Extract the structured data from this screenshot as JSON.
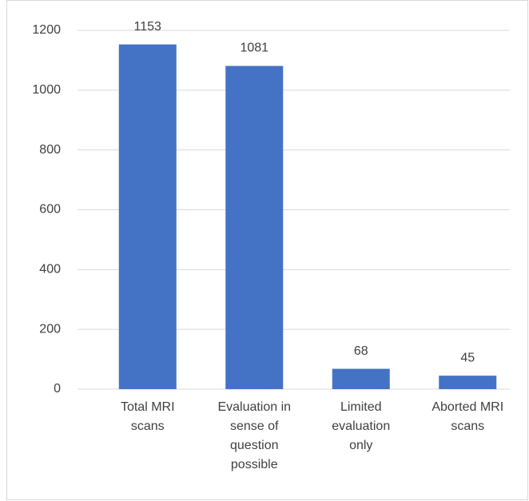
{
  "chart_data": {
    "type": "bar",
    "categories": [
      "Total MRI scans",
      "Evaluation in sense of question possible",
      "Limited evaluation only",
      "Aborted MRI scans"
    ],
    "values": [
      1153,
      1081,
      68,
      45
    ],
    "color": "#4472c4",
    "ylim": [
      0,
      1200
    ],
    "yticks": [
      0,
      200,
      400,
      600,
      800,
      1000,
      1200
    ],
    "grid": true
  }
}
